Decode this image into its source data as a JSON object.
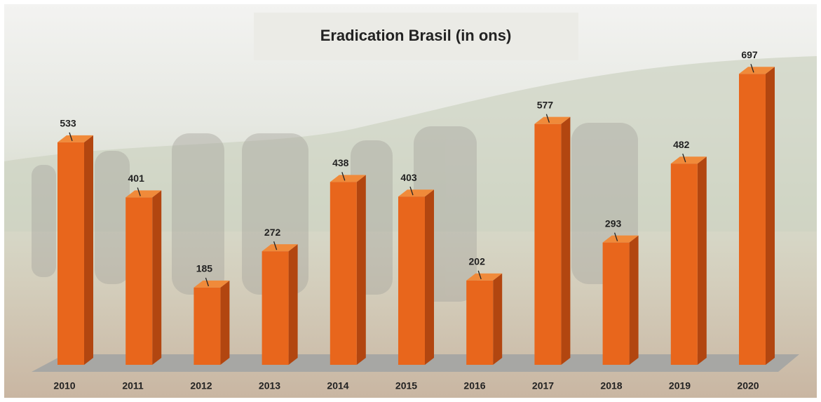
{
  "chart_data": {
    "type": "bar3d",
    "title": "Eradication Brasil (in ons)",
    "categories": [
      "2010",
      "2011",
      "2012",
      "2013",
      "2014",
      "2015",
      "2016",
      "2017",
      "2018",
      "2019",
      "2020"
    ],
    "values": [
      533,
      401,
      185,
      272,
      438,
      403,
      202,
      577,
      293,
      482,
      697
    ],
    "color": "#e8661c"
  }
}
